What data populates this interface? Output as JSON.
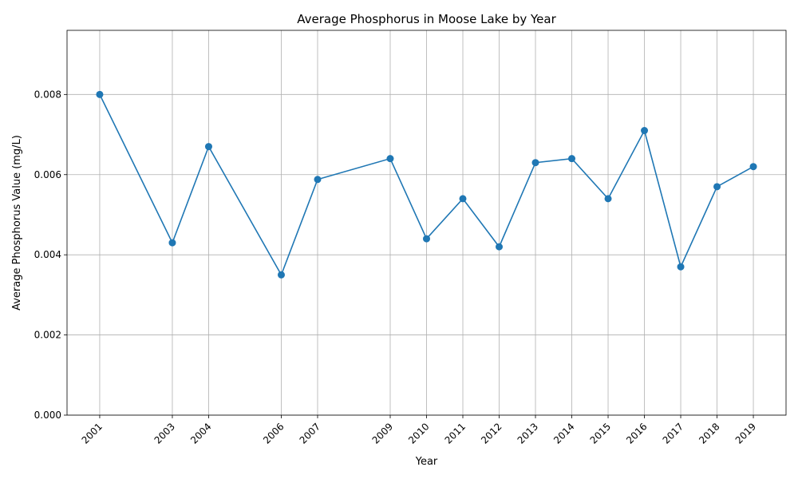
{
  "chart_data": {
    "type": "line",
    "title": "Average Phosphorus in Moose Lake by Year",
    "xlabel": "Year",
    "ylabel": "Average Phosphorus Value (mg/L)",
    "x": [
      2001,
      2003,
      2004,
      2006,
      2007,
      2009,
      2010,
      2011,
      2012,
      2013,
      2014,
      2015,
      2016,
      2017,
      2018,
      2019
    ],
    "x_tick_labels": [
      "2001",
      "2003",
      "2004",
      "2006",
      "2007",
      "2009",
      "2010",
      "2011",
      "2012",
      "2013",
      "2014",
      "2015",
      "2016",
      "2017",
      "2018",
      "2019"
    ],
    "values": [
      0.008,
      0.0043,
      0.0067,
      0.0035,
      0.00588,
      0.0064,
      0.0044,
      0.0054,
      0.0042,
      0.0063,
      0.0064,
      0.0054,
      0.0071,
      0.0037,
      0.0057,
      0.0062
    ],
    "y_ticks": [
      0,
      0.002,
      0.004,
      0.006,
      0.008
    ],
    "y_tick_labels": [
      "0.000",
      "0.002",
      "0.004",
      "0.006",
      "0.008"
    ],
    "xlim": [
      2000.1,
      2019.9
    ],
    "ylim": [
      0,
      0.0096
    ],
    "grid": true,
    "marker": "circle",
    "line_color": "#1f77b4"
  }
}
